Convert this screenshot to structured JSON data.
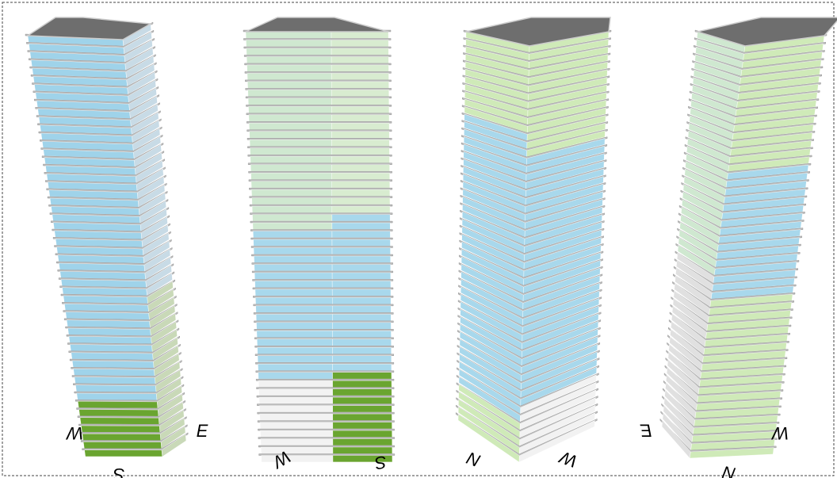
{
  "towers": [
    {
      "labels": [
        "W",
        "E",
        "S"
      ]
    },
    {
      "labels": [
        "W",
        "S"
      ]
    },
    {
      "labels": [
        "N",
        "W"
      ]
    },
    {
      "labels": [
        "E",
        "W",
        "N"
      ]
    }
  ]
}
